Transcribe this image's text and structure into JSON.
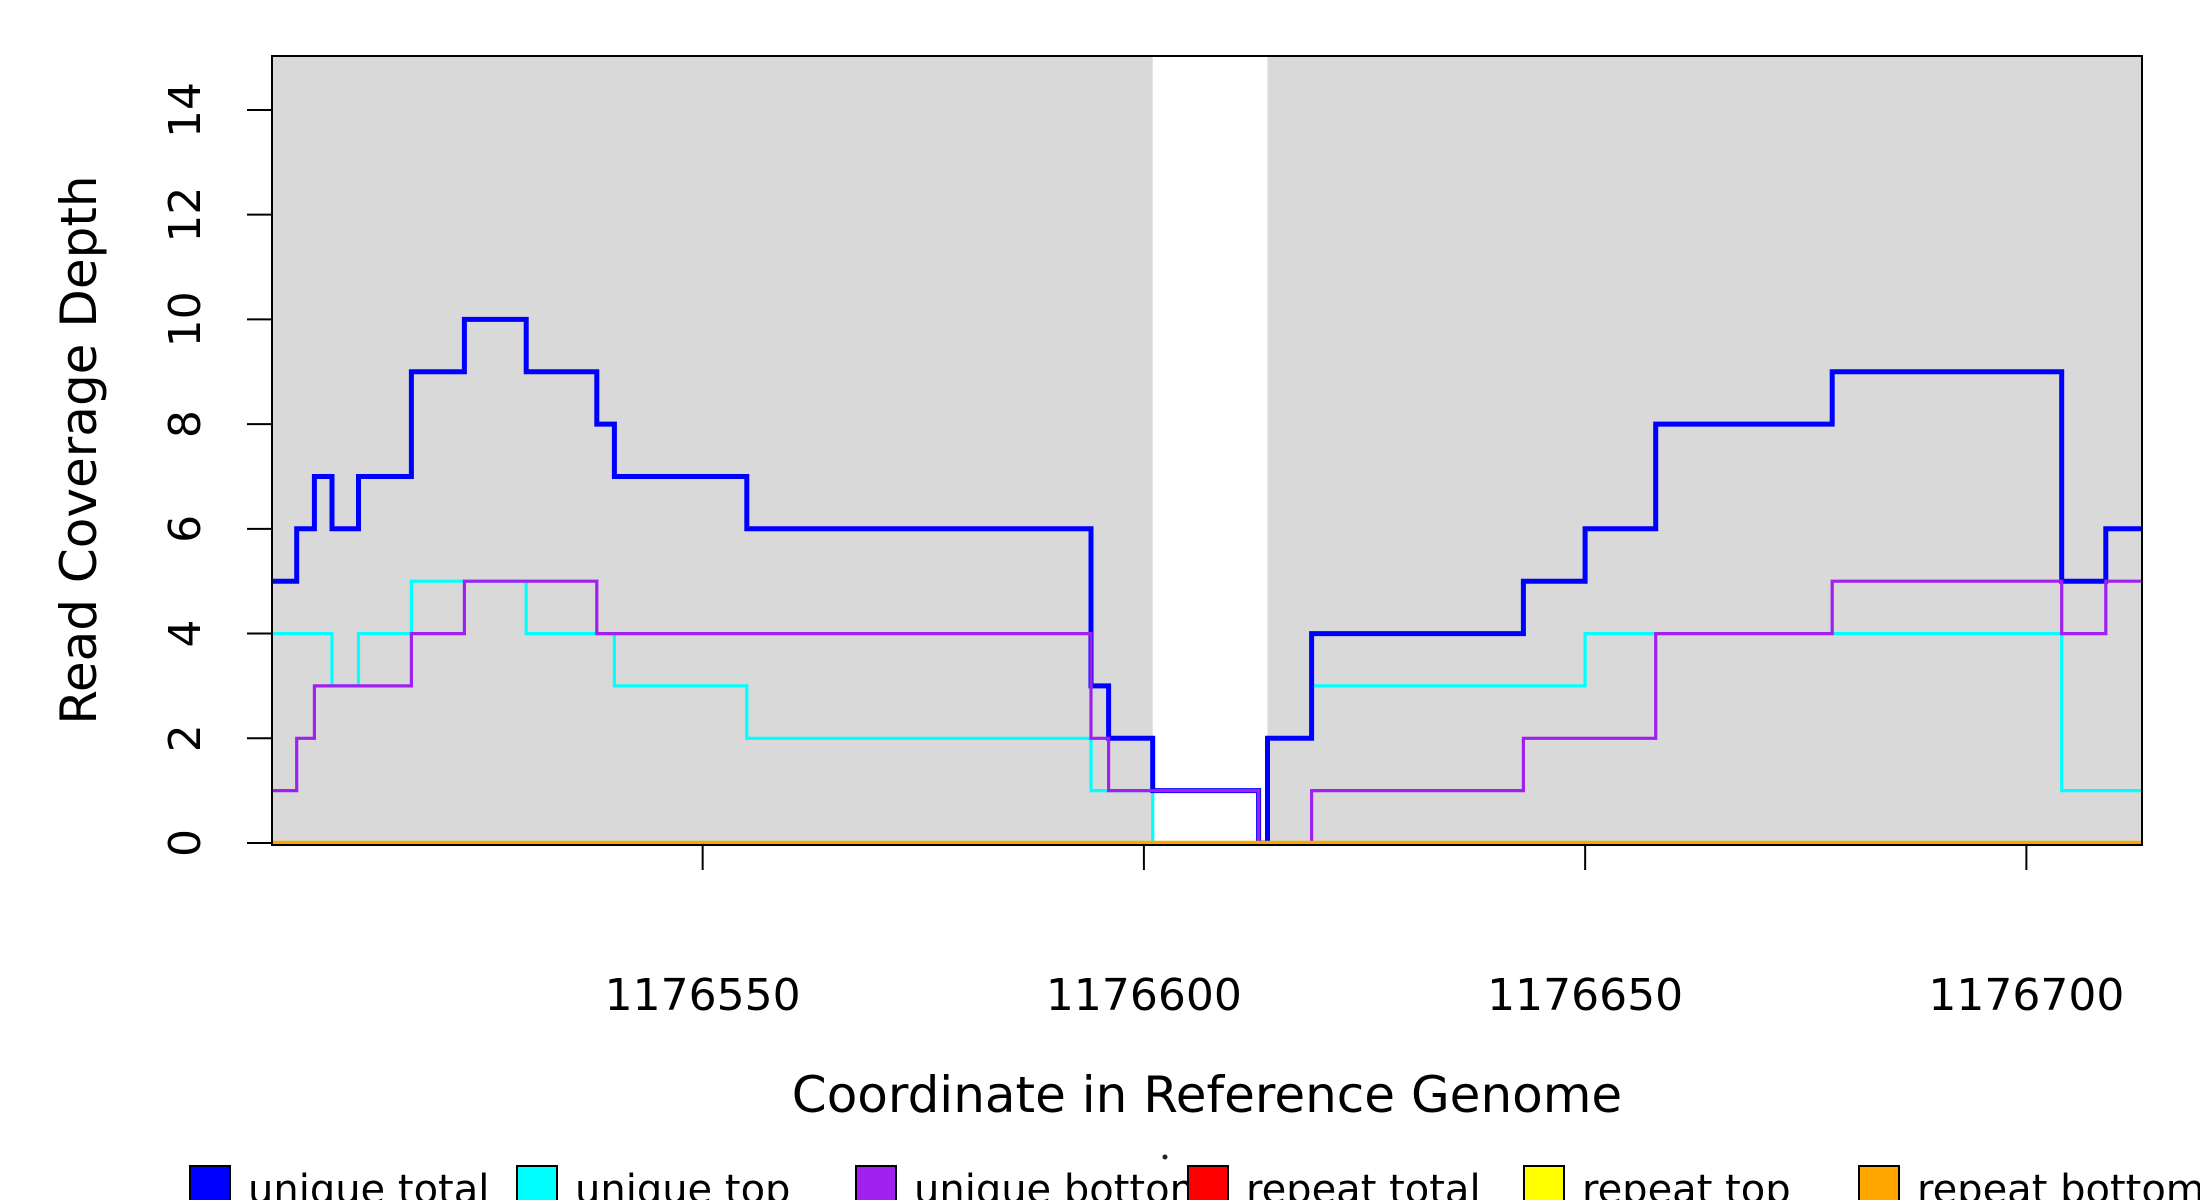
{
  "chart_data": {
    "type": "line",
    "subtype": "step-after",
    "title": "",
    "xlabel": "Coordinate in Reference Genome",
    "ylabel": "Read Coverage Depth",
    "grid": false,
    "legend_position": "bottom",
    "x_axis": {
      "min": 1176501.2,
      "max": 1176713.1,
      "ticks": [
        1176550,
        1176600,
        1176650,
        1176700
      ],
      "tick_labels": [
        "1176550",
        "1176600",
        "1176650",
        "1176700"
      ]
    },
    "y_axis": {
      "min": 0,
      "max": 15,
      "ticks": [
        0,
        2,
        4,
        6,
        8,
        10,
        12,
        14
      ],
      "tick_labels": [
        "0",
        "2",
        "4",
        "6",
        "8",
        "10",
        "12",
        "14"
      ]
    },
    "shaded_regions": [
      {
        "x0": 1176501.2,
        "x1": 1176601,
        "color": "#d9d9d9"
      },
      {
        "x0": 1176614,
        "x1": 1176713.1,
        "color": "#d9d9d9"
      }
    ],
    "series": [
      {
        "name": "unique top",
        "color": "#00FFFF",
        "line_width": 3.2,
        "steps": [
          [
            1176501,
            4
          ],
          [
            1176508,
            3
          ],
          [
            1176511,
            4
          ],
          [
            1176517,
            5
          ],
          [
            1176530,
            4
          ],
          [
            1176540,
            3
          ],
          [
            1176555,
            2
          ],
          [
            1176594,
            1
          ],
          [
            1176601,
            0
          ],
          [
            1176614,
            2
          ],
          [
            1176619,
            3
          ],
          [
            1176650,
            4
          ],
          [
            1176704,
            1
          ]
        ]
      },
      {
        "name": "unique total",
        "color": "#0000FF",
        "line_width": 5,
        "steps": [
          [
            1176501,
            5
          ],
          [
            1176504,
            6
          ],
          [
            1176506,
            7
          ],
          [
            1176508,
            6
          ],
          [
            1176511,
            7
          ],
          [
            1176517,
            9
          ],
          [
            1176523,
            10
          ],
          [
            1176530,
            9
          ],
          [
            1176538,
            8
          ],
          [
            1176540,
            7
          ],
          [
            1176555,
            6
          ],
          [
            1176594,
            3
          ],
          [
            1176596,
            2
          ],
          [
            1176601,
            1
          ],
          [
            1176613,
            0
          ],
          [
            1176614,
            2
          ],
          [
            1176619,
            4
          ],
          [
            1176643,
            5
          ],
          [
            1176650,
            6
          ],
          [
            1176658,
            8
          ],
          [
            1176678,
            9
          ],
          [
            1176704,
            5
          ],
          [
            1176709,
            6
          ]
        ]
      },
      {
        "name": "unique bottom",
        "color": "#A020F0",
        "line_width": 3.2,
        "steps": [
          [
            1176501,
            1
          ],
          [
            1176504,
            2
          ],
          [
            1176506,
            3
          ],
          [
            1176517,
            4
          ],
          [
            1176523,
            5
          ],
          [
            1176538,
            4
          ],
          [
            1176594,
            2
          ],
          [
            1176596,
            1
          ],
          [
            1176613,
            0
          ],
          [
            1176619,
            1
          ],
          [
            1176643,
            2
          ],
          [
            1176658,
            4
          ],
          [
            1176678,
            5
          ],
          [
            1176704,
            4
          ],
          [
            1176709,
            5
          ]
        ]
      },
      {
        "name": "repeat total",
        "color": "#FF0000",
        "line_width": 3.2,
        "steps": [
          [
            1176501,
            0
          ]
        ]
      },
      {
        "name": "repeat top",
        "color": "#FFFF00",
        "line_width": 3.2,
        "steps": [
          [
            1176501,
            0
          ]
        ]
      },
      {
        "name": "repeat bottom",
        "color": "#FFA500",
        "line_width": 4.5,
        "steps": [
          [
            1176501,
            0
          ]
        ]
      }
    ],
    "legend": [
      {
        "label": "unique total",
        "color": "#0000FF"
      },
      {
        "label": "unique top",
        "color": "#00FFFF"
      },
      {
        "label": "unique bottom",
        "color": "#A020F0"
      },
      {
        "label": "repeat total",
        "color": "#FF0000"
      },
      {
        "label": "repeat top",
        "color": "#FFFF00"
      },
      {
        "label": "repeat bottom",
        "color": "#FFA500"
      }
    ]
  }
}
